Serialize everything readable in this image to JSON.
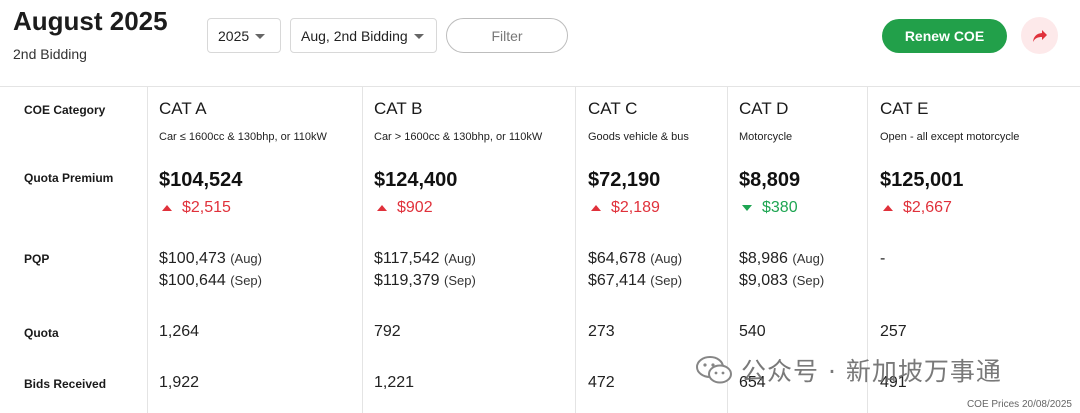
{
  "header": {
    "title": "August 2025",
    "subtitle": "2nd Bidding",
    "year_select": "2025",
    "bidding_select": "Aug, 2nd Bidding",
    "filter_placeholder": "Filter",
    "renew_label": "Renew COE",
    "share_icon": "share-arrow-icon",
    "accent_color": "#22a04a"
  },
  "row_labels": {
    "category": "COE Category",
    "quota_premium": "Quota Premium",
    "pqp": "PQP",
    "quota": "Quota",
    "bids_received": "Bids Received"
  },
  "categories": [
    {
      "name": "CAT A",
      "desc": "Car ≤ 1600cc & 130bhp, or 110kW",
      "premium": "$104,524",
      "change": "$2,515",
      "direction": "up",
      "pqp_aug_value": "$100,473",
      "pqp_aug_label": "(Aug)",
      "pqp_sep_value": "$100,644",
      "pqp_sep_label": "(Sep)",
      "quota": "1,264",
      "bids": "1,922"
    },
    {
      "name": "CAT B",
      "desc": "Car > 1600cc & 130bhp, or 110kW",
      "premium": "$124,400",
      "change": "$902",
      "direction": "up",
      "pqp_aug_value": "$117,542",
      "pqp_aug_label": "(Aug)",
      "pqp_sep_value": "$119,379",
      "pqp_sep_label": "(Sep)",
      "quota": "792",
      "bids": "1,221"
    },
    {
      "name": "CAT C",
      "desc": "Goods vehicle & bus",
      "premium": "$72,190",
      "change": "$2,189",
      "direction": "up",
      "pqp_aug_value": "$64,678",
      "pqp_aug_label": "(Aug)",
      "pqp_sep_value": "$67,414",
      "pqp_sep_label": "(Sep)",
      "quota": "273",
      "bids": "472"
    },
    {
      "name": "CAT D",
      "desc": "Motorcycle",
      "premium": "$8,809",
      "change": "$380",
      "direction": "down",
      "pqp_aug_value": "$8,986",
      "pqp_aug_label": "(Aug)",
      "pqp_sep_value": "$9,083",
      "pqp_sep_label": "(Sep)",
      "quota": "540",
      "bids": "654"
    },
    {
      "name": "CAT E",
      "desc": "Open - all except motorcycle",
      "premium": "$125,001",
      "change": "$2,667",
      "direction": "up",
      "pqp_aug_value": "-",
      "pqp_aug_label": "",
      "pqp_sep_value": "",
      "pqp_sep_label": "",
      "quota": "257",
      "bids": "491"
    }
  ],
  "colors": {
    "up": "#e0313b",
    "down": "#1ea552"
  },
  "watermark": "公众号 · 新加坡万事通",
  "footnote": "COE Prices 20/08/2025"
}
